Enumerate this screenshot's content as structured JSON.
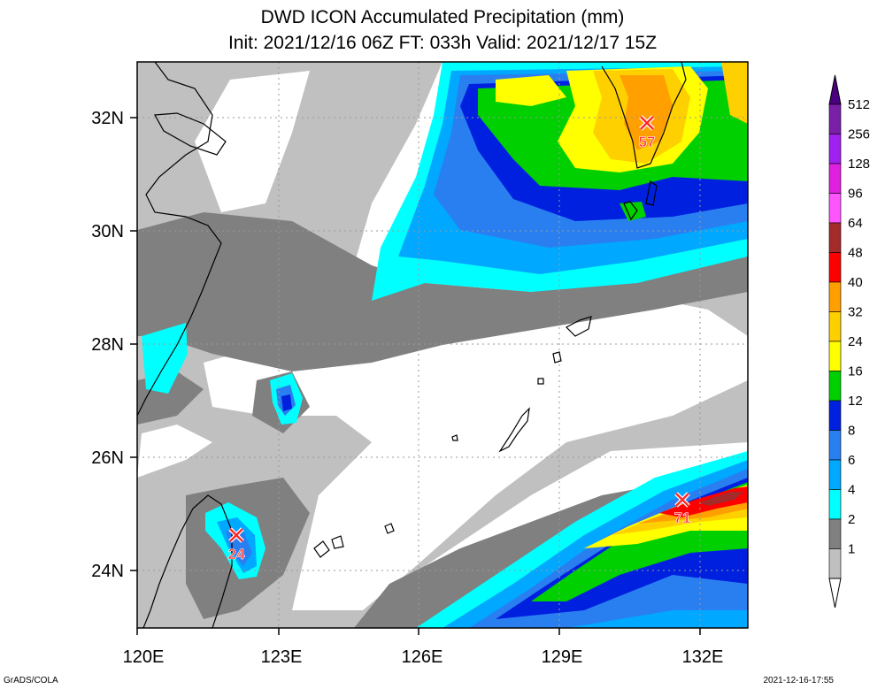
{
  "title": {
    "line1": "DWD ICON Accumulated Precipitation (mm)",
    "line2": "Init: 2021/12/16 06Z  FT: 033h  Valid: 2021/12/17 15Z"
  },
  "map": {
    "lon_ticks": [
      "120E",
      "123E",
      "126E",
      "129E",
      "132E"
    ],
    "lat_ticks": [
      "32N",
      "30N",
      "28N",
      "26N",
      "24N"
    ],
    "lon_range": [
      120,
      133
    ],
    "lat_range": [
      23,
      33
    ]
  },
  "colorbar": {
    "levels": [
      "512",
      "256",
      "128",
      "96",
      "64",
      "48",
      "40",
      "32",
      "24",
      "16",
      "12",
      "8",
      "6",
      "4",
      "2",
      "1"
    ],
    "colors": [
      "#7a1fa8",
      "#a020f0",
      "#e01fe0",
      "#ff55ff",
      "#a52a2a",
      "#ff0000",
      "#ffa000",
      "#ffd000",
      "#ffff00",
      "#00d000",
      "#0020e0",
      "#2a7ff0",
      "#00a8ff",
      "#00ffff",
      "#808080",
      "#c0c0c0"
    ]
  },
  "maxima": [
    {
      "label": "57",
      "lon": 130.9,
      "lat": 31.9
    },
    {
      "label": "71",
      "lon": 131.6,
      "lat": 25.2
    },
    {
      "label": "24",
      "lon": 122.1,
      "lat": 24.6
    }
  ],
  "footer": {
    "left": "GrADS/COLA",
    "right": "2021-12-16-17:55"
  }
}
